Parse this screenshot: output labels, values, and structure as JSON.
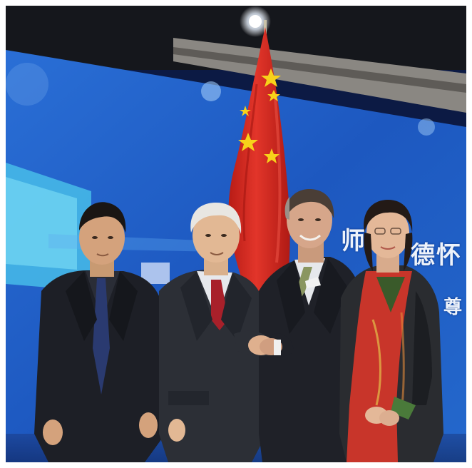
{
  "photo": {
    "background_screen_text": [
      "师",
      "德怀",
      "尊"
    ],
    "colors": {
      "screen_blue": "#1f5fc8",
      "screen_glow": "#5fa8f0",
      "ceiling": "#15171c",
      "flag_red": "#d6281e",
      "flag_star": "#f7d21a",
      "suit_dark": "#22252c",
      "scarf_red": "#c8352a",
      "tie_red": "#a8202a",
      "tie_green": "#8a9660"
    },
    "objects": [
      "ceiling-light",
      "chinese-flag",
      "led-screen",
      "person-1",
      "person-2",
      "person-3",
      "person-4",
      "handshake"
    ]
  }
}
